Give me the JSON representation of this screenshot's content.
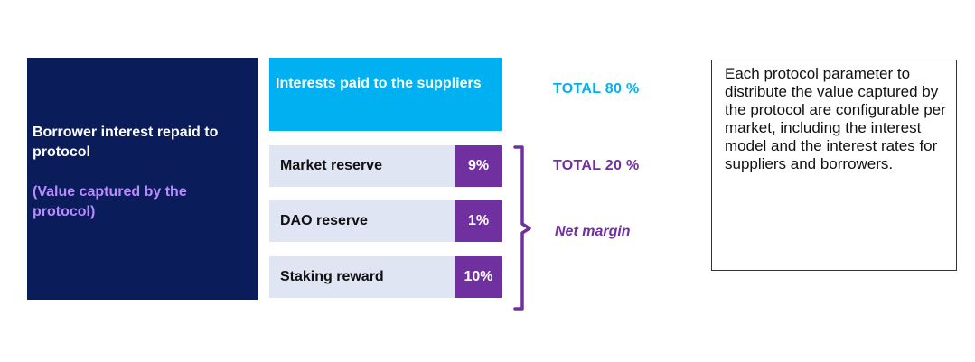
{
  "borrower": {
    "title": "Borrower interest repaid to protocol",
    "subtitle": "(Value captured by the protocol)"
  },
  "interests": {
    "label": "Interests paid to the suppliers",
    "total": "TOTAL  80 %"
  },
  "reserves": {
    "rows": [
      {
        "label": "Market reserve",
        "pct": "9%"
      },
      {
        "label": "DAO reserve",
        "pct": "1%"
      },
      {
        "label": "Staking reward",
        "pct": "10%"
      }
    ],
    "total": "TOTAL  20 %",
    "group_label": "Net margin"
  },
  "note": {
    "text": "Each protocol parameter to distribute the value captured by the protocol are configurable per market, including the interest model and the interest rates for suppliers and borrowers."
  },
  "colors": {
    "navy": "#0b1c5a",
    "cyan": "#00b0f0",
    "purple": "#7030a0",
    "light_purple": "#b68cff",
    "row_bg": "#dfe5f3"
  }
}
